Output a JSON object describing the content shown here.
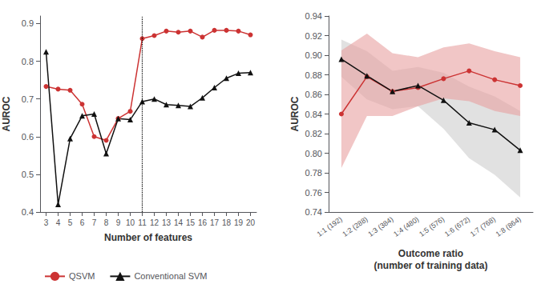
{
  "chart_data": [
    {
      "type": "line",
      "xlabel": "Number of features",
      "ylabel": "AUROC",
      "x": [
        3,
        4,
        5,
        6,
        7,
        8,
        9,
        10,
        11,
        12,
        13,
        14,
        15,
        16,
        17,
        18,
        19,
        20
      ],
      "series": [
        {
          "name": "QSVM",
          "color": "#cc3333",
          "marker": "circle",
          "values": [
            0.733,
            0.726,
            0.723,
            0.686,
            0.6,
            0.59,
            0.648,
            0.667,
            0.86,
            0.868,
            0.88,
            0.877,
            0.88,
            0.864,
            0.882,
            0.882,
            0.88,
            0.87
          ]
        },
        {
          "name": "Conventional SVM",
          "color": "#111111",
          "marker": "triangle",
          "values": [
            0.825,
            0.42,
            0.595,
            0.655,
            0.66,
            0.555,
            0.648,
            0.645,
            0.693,
            0.7,
            0.685,
            0.683,
            0.68,
            0.703,
            0.73,
            0.755,
            0.768,
            0.77
          ]
        }
      ],
      "vline": 11,
      "xlim": [
        2.5,
        20.5
      ],
      "xticks": [
        3,
        4,
        5,
        6,
        7,
        8,
        9,
        10,
        11,
        12,
        13,
        14,
        15,
        16,
        17,
        18,
        19,
        20
      ],
      "ylim": [
        0.4,
        0.92
      ],
      "yticks": [
        0.4,
        0.5,
        0.6,
        0.7,
        0.8,
        0.9
      ],
      "grid": false,
      "legend": "bottom"
    },
    {
      "type": "line",
      "xlabel": "Outcome ratio\n(number of training data)",
      "ylabel": "AUROC",
      "categories": [
        "1:1 (192)",
        "1:2 (288)",
        "1:3 (384)",
        "1:4 (480)",
        "1:5 (576)",
        "1:6 (672)",
        "1:7 (768)",
        "1:8 (864)"
      ],
      "series": [
        {
          "name": "QSVM",
          "color": "#cc3333",
          "marker": "circle",
          "values": [
            0.84,
            0.878,
            0.863,
            0.867,
            0.876,
            0.884,
            0.875,
            0.869
          ],
          "band_low": [
            0.785,
            0.838,
            0.838,
            0.848,
            0.856,
            0.853,
            0.843,
            0.838
          ],
          "band_high": [
            0.905,
            0.922,
            0.902,
            0.898,
            0.908,
            0.912,
            0.904,
            0.898
          ],
          "band_color": "#e8a0a0"
        },
        {
          "name": "Conventional SVM",
          "color": "#111111",
          "marker": "triangle",
          "values": [
            0.896,
            0.879,
            0.863,
            0.869,
            0.854,
            0.831,
            0.824,
            0.803
          ],
          "band_low": [
            0.878,
            0.855,
            0.845,
            0.848,
            0.825,
            0.795,
            0.778,
            0.755
          ],
          "band_high": [
            0.916,
            0.904,
            0.884,
            0.888,
            0.882,
            0.868,
            0.858,
            0.843
          ],
          "band_color": "#c8c8c8"
        }
      ],
      "ylim": [
        0.74,
        0.94
      ],
      "yticks": [
        0.74,
        0.76,
        0.78,
        {
          "value": 0.8,
          "label": "0.80"
        },
        0.82,
        0.84,
        0.86,
        0.88,
        {
          "value": 0.9,
          "label": "0.90"
        },
        0.92,
        0.94
      ],
      "grid": false
    }
  ]
}
